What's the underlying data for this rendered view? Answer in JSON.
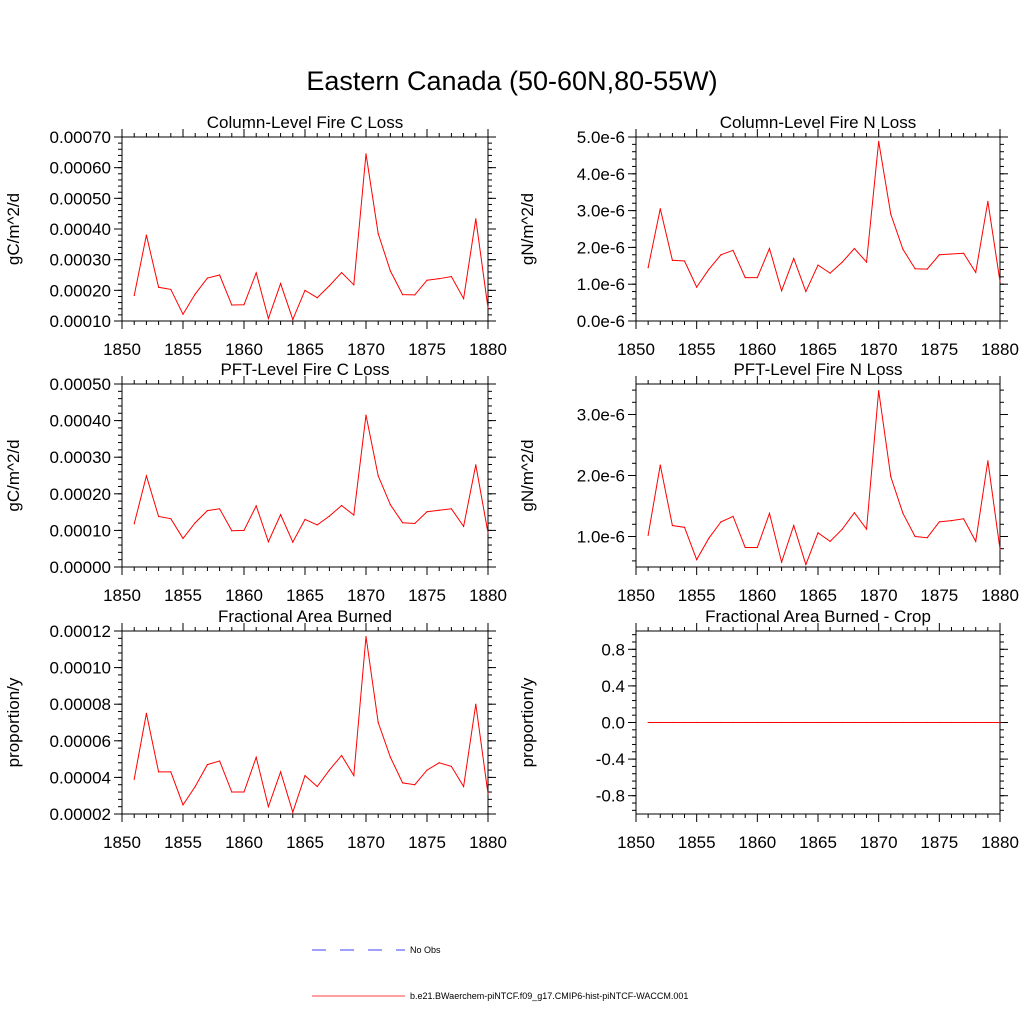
{
  "title": "Eastern Canada (50-60N,80-55W)",
  "colors": {
    "model": "#ff0000",
    "obs": "#0000ff",
    "axis": "#000000"
  },
  "legend": {
    "obs_label": "No Obs",
    "model_label": "b.e21.BWaerchem-piNTCF.f09_g17.CMIP6-hist-piNTCF-WACCM.001"
  },
  "chart_data": [
    {
      "type": "line",
      "title": "Column-Level Fire C Loss",
      "ylabel": "gC/m^2/d",
      "xlim": [
        1850,
        1880
      ],
      "ylim": [
        0.0001,
        0.0007
      ],
      "xticks": [
        "1850",
        "1855",
        "1860",
        "1865",
        "1870",
        "1875",
        "1880"
      ],
      "yticks": [
        "0.00010",
        "0.00020",
        "0.00030",
        "0.00040",
        "0.00050",
        "0.00060",
        "0.00070"
      ],
      "x": [
        1851,
        1852,
        1853,
        1854,
        1855,
        1856,
        1857,
        1858,
        1859,
        1860,
        1861,
        1862,
        1863,
        1864,
        1865,
        1866,
        1867,
        1868,
        1869,
        1870,
        1871,
        1872,
        1873,
        1874,
        1875,
        1876,
        1877,
        1878,
        1879,
        1880
      ],
      "series": [
        {
          "values": [
            0.000183,
            0.00038,
            0.00021,
            0.000203,
            0.000122,
            0.000188,
            0.00024,
            0.00025,
            0.000152,
            0.000153,
            0.000257,
            0.000108,
            0.000222,
            0.000105,
            0.0002,
            0.000176,
            0.000215,
            0.000258,
            0.000218,
            0.000645,
            0.000385,
            0.000263,
            0.000186,
            0.000185,
            0.000233,
            0.000238,
            0.000245,
            0.000173,
            0.000433,
            0.000142
          ]
        }
      ]
    },
    {
      "type": "line",
      "title": "Column-Level Fire N Loss",
      "ylabel": "gN/m^2/d",
      "xlim": [
        1850,
        1880
      ],
      "ylim": [
        0,
        5e-06
      ],
      "xticks": [
        "1850",
        "1855",
        "1860",
        "1865",
        "1870",
        "1875",
        "1880"
      ],
      "yticks": [
        "0.0e-6",
        "1.0e-6",
        "2.0e-6",
        "3.0e-6",
        "4.0e-6",
        "5.0e-6"
      ],
      "x": [
        1851,
        1852,
        1853,
        1854,
        1855,
        1856,
        1857,
        1858,
        1859,
        1860,
        1861,
        1862,
        1863,
        1864,
        1865,
        1866,
        1867,
        1868,
        1869,
        1870,
        1871,
        1872,
        1873,
        1874,
        1875,
        1876,
        1877,
        1878,
        1879,
        1880
      ],
      "series": [
        {
          "values": [
            1.45e-06,
            3.05e-06,
            1.65e-06,
            1.63e-06,
            9.2e-07,
            1.4e-06,
            1.8e-06,
            1.92e-06,
            1.18e-06,
            1.18e-06,
            1.97e-06,
            8.2e-07,
            1.7e-06,
            8e-07,
            1.52e-06,
            1.3e-06,
            1.6e-06,
            1.97e-06,
            1.6e-06,
            4.88e-06,
            2.9e-06,
            1.95e-06,
            1.42e-06,
            1.41e-06,
            1.8e-06,
            1.82e-06,
            1.84e-06,
            1.32e-06,
            3.25e-06,
            1.07e-06
          ]
        }
      ]
    },
    {
      "type": "line",
      "title": "PFT-Level Fire C Loss",
      "ylabel": "gC/m^2/d",
      "xlim": [
        1850,
        1880
      ],
      "ylim": [
        0,
        0.0005
      ],
      "xticks": [
        "1850",
        "1855",
        "1860",
        "1865",
        "1870",
        "1875",
        "1880"
      ],
      "yticks": [
        "0.00000",
        "0.00010",
        "0.00020",
        "0.00030",
        "0.00040",
        "0.00050"
      ],
      "x": [
        1851,
        1852,
        1853,
        1854,
        1855,
        1856,
        1857,
        1858,
        1859,
        1860,
        1861,
        1862,
        1863,
        1864,
        1865,
        1866,
        1867,
        1868,
        1869,
        1870,
        1871,
        1872,
        1873,
        1874,
        1875,
        1876,
        1877,
        1878,
        1879,
        1880
      ],
      "series": [
        {
          "values": [
            0.000118,
            0.000249,
            0.000138,
            0.000132,
            7.8e-05,
            0.000121,
            0.000154,
            0.000159,
            9.9e-05,
            0.0001,
            0.000167,
            6.9e-05,
            0.000143,
            6.8e-05,
            0.00013,
            0.000115,
            0.000139,
            0.000168,
            0.000142,
            0.000415,
            0.000249,
            0.00017,
            0.000121,
            0.000119,
            0.000151,
            0.000155,
            0.000159,
            0.000111,
            0.000279,
            9.3e-05
          ]
        }
      ]
    },
    {
      "type": "line",
      "title": "PFT-Level Fire N Loss",
      "ylabel": "gN/m^2/d",
      "xlim": [
        1850,
        1880
      ],
      "ylim": [
        5e-07,
        3.5e-06
      ],
      "xticks": [
        "1850",
        "1855",
        "1860",
        "1865",
        "1870",
        "1875",
        "1880"
      ],
      "yticks": [
        "1.0e-6",
        "2.0e-6",
        "3.0e-6"
      ],
      "x": [
        1851,
        1852,
        1853,
        1854,
        1855,
        1856,
        1857,
        1858,
        1859,
        1860,
        1861,
        1862,
        1863,
        1864,
        1865,
        1866,
        1867,
        1868,
        1869,
        1870,
        1871,
        1872,
        1873,
        1874,
        1875,
        1876,
        1877,
        1878,
        1879,
        1880
      ],
      "series": [
        {
          "values": [
            1.02e-06,
            2.17e-06,
            1.18e-06,
            1.15e-06,
            6.2e-07,
            9.7e-07,
            1.24e-06,
            1.33e-06,
            8.2e-07,
            8.2e-07,
            1.38e-06,
            5.8e-07,
            1.18e-06,
            5.4e-07,
            1.06e-06,
            9.2e-07,
            1.12e-06,
            1.39e-06,
            1.12e-06,
            3.39e-06,
            1.98e-06,
            1.38e-06,
            1e-06,
            9.8e-07,
            1.24e-06,
            1.26e-06,
            1.29e-06,
            9.2e-07,
            2.24e-06,
            7.9e-07
          ]
        }
      ]
    },
    {
      "type": "line",
      "title": "Fractional Area Burned",
      "ylabel": "proportion/y",
      "xlim": [
        1850,
        1880
      ],
      "ylim": [
        2e-05,
        0.00012
      ],
      "xticks": [
        "1850",
        "1855",
        "1860",
        "1865",
        "1870",
        "1875",
        "1880"
      ],
      "yticks": [
        "0.00002",
        "0.00004",
        "0.00006",
        "0.00008",
        "0.00010",
        "0.00012"
      ],
      "x": [
        1851,
        1852,
        1853,
        1854,
        1855,
        1856,
        1857,
        1858,
        1859,
        1860,
        1861,
        1862,
        1863,
        1864,
        1865,
        1866,
        1867,
        1868,
        1869,
        1870,
        1871,
        1872,
        1873,
        1874,
        1875,
        1876,
        1877,
        1878,
        1879,
        1880
      ],
      "series": [
        {
          "values": [
            3.9e-05,
            7.5e-05,
            4.3e-05,
            4.3e-05,
            2.5e-05,
            3.5e-05,
            4.7e-05,
            4.9e-05,
            3.2e-05,
            3.2e-05,
            5.1e-05,
            2.4e-05,
            4.3e-05,
            2.1e-05,
            4.1e-05,
            3.5e-05,
            4.4e-05,
            5.2e-05,
            4.1e-05,
            0.000117,
            7e-05,
            5.1e-05,
            3.7e-05,
            3.6e-05,
            4.4e-05,
            4.8e-05,
            4.6e-05,
            3.5e-05,
            8e-05,
            3.1e-05
          ]
        }
      ]
    },
    {
      "type": "line",
      "title": "Fractional Area Burned - Crop",
      "ylabel": "proportion/y",
      "xlim": [
        1850,
        1880
      ],
      "ylim": [
        -1.0,
        1.0
      ],
      "xticks": [
        "1850",
        "1855",
        "1860",
        "1865",
        "1870",
        "1875",
        "1880"
      ],
      "yticks": [
        "-0.8",
        "-0.4",
        "0.0",
        "0.4",
        "0.8"
      ],
      "x": [
        1851,
        1852,
        1853,
        1854,
        1855,
        1856,
        1857,
        1858,
        1859,
        1860,
        1861,
        1862,
        1863,
        1864,
        1865,
        1866,
        1867,
        1868,
        1869,
        1870,
        1871,
        1872,
        1873,
        1874,
        1875,
        1876,
        1877,
        1878,
        1879,
        1880
      ],
      "series": [
        {
          "values": [
            0,
            0,
            0,
            0,
            0,
            0,
            0,
            0,
            0,
            0,
            0,
            0,
            0,
            0,
            0,
            0,
            0,
            0,
            0,
            0,
            0,
            0,
            0,
            0,
            0,
            0,
            0,
            0,
            0,
            0
          ]
        }
      ]
    }
  ]
}
